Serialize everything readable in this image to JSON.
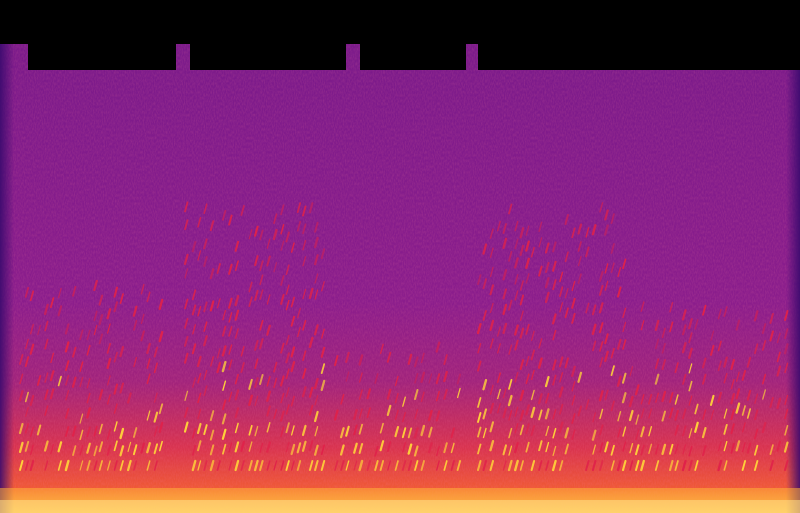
{
  "image": {
    "kind": "spectrogram",
    "colormap": "magma-like",
    "palette": {
      "background": "#000000",
      "low": "#3a0a6e",
      "mid": "#8c1d8f",
      "high": "#e0224a",
      "peak": "#ffd23a",
      "max": "#fff3a0"
    }
  }
}
